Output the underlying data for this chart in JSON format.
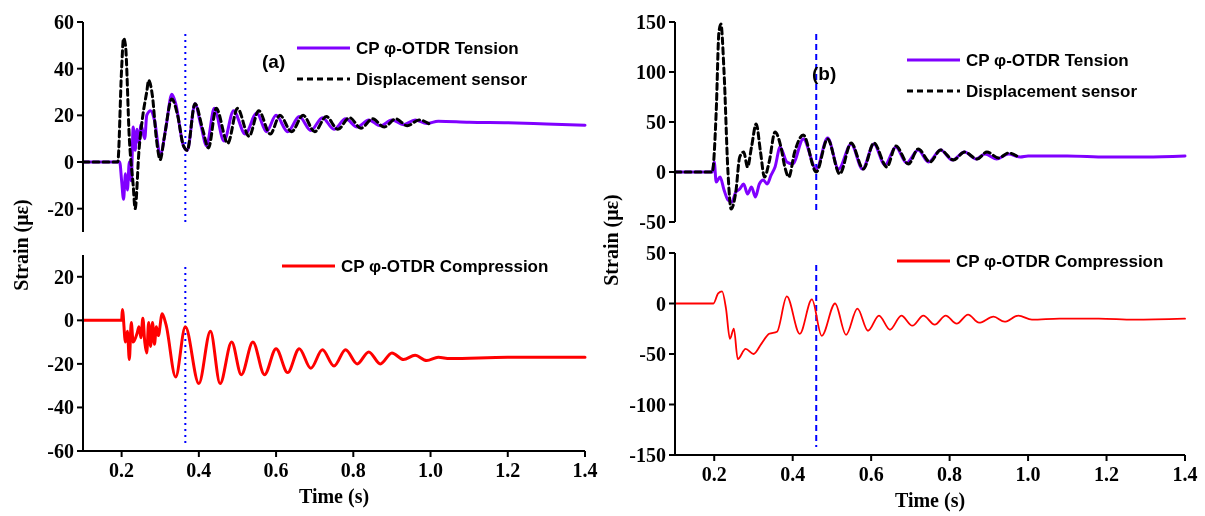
{
  "chart_data": [
    {
      "type": "line",
      "ylabel": "Strain (με)",
      "annotations": [
        "(a)"
      ],
      "xlim": [
        0.1,
        1.4
      ],
      "ylim": [
        -30,
        60
      ],
      "yticks": [
        -20,
        0,
        20,
        40,
        60
      ],
      "tick_labels": "y",
      "legend": "top right",
      "grid": false,
      "ref_lines": [
        {
          "axis": "x",
          "value": 0.365,
          "color": "#0000ff",
          "line_style": "dotted"
        }
      ],
      "series": [
        {
          "name": "CP φ-OTDR  Tension",
          "color": "#8000ff",
          "line_style": "solid",
          "x": [
            0.1,
            0.195,
            0.2,
            0.205,
            0.21,
            0.215,
            0.22,
            0.225,
            0.23,
            0.235,
            0.24,
            0.245,
            0.25,
            0.26,
            0.265,
            0.275,
            0.285,
            0.3,
            0.315,
            0.33,
            0.34,
            0.36,
            0.37,
            0.39,
            0.405,
            0.42,
            0.44,
            0.465,
            0.49,
            0.52,
            0.55,
            0.575,
            0.6,
            0.63,
            0.66,
            0.69,
            0.72,
            0.75,
            0.78,
            0.81,
            0.84,
            0.87,
            0.9,
            0.93,
            0.96,
            0.99,
            1.02,
            1.1,
            1.2,
            1.3,
            1.4
          ],
          "values": [
            0,
            0,
            -8,
            -16,
            -5,
            -12,
            0,
            -8,
            15,
            5,
            14,
            8,
            16,
            10,
            20,
            22,
            18,
            3,
            15,
            29,
            25,
            7,
            5,
            25,
            16,
            7,
            23,
            9,
            22,
            12,
            21,
            13,
            20,
            13,
            19.5,
            13.5,
            19,
            14,
            18.5,
            15,
            18,
            15.5,
            18,
            16,
            18,
            16.5,
            17.5,
            17,
            16.8,
            16.3,
            15.8
          ]
        },
        {
          "name": "Displacement sensor",
          "color": "#000000",
          "line_style": "dashed",
          "x": [
            0.1,
            0.19,
            0.2,
            0.205,
            0.21,
            0.22,
            0.23,
            0.235,
            0.245,
            0.255,
            0.265,
            0.27,
            0.28,
            0.29,
            0.3,
            0.31,
            0.33,
            0.345,
            0.36,
            0.37,
            0.39,
            0.41,
            0.425,
            0.445,
            0.475,
            0.5,
            0.53,
            0.555,
            0.585,
            0.61,
            0.64,
            0.67,
            0.7,
            0.73,
            0.76,
            0.79,
            0.82,
            0.85,
            0.88,
            0.91,
            0.94,
            0.97,
            1.0
          ],
          "values": [
            0,
            0,
            40,
            53,
            50,
            10,
            -10,
            -20,
            5,
            20,
            30,
            35,
            28,
            10,
            1,
            10,
            27,
            20,
            7,
            5,
            25,
            14,
            6,
            23,
            8,
            23,
            11,
            22,
            12,
            20,
            13,
            20,
            13,
            19.5,
            14,
            19,
            14.5,
            18.5,
            15,
            18.5,
            15.5,
            18,
            16
          ]
        }
      ]
    },
    {
      "type": "line",
      "xlabel": "Time (s)",
      "xlim": [
        0.1,
        1.4
      ],
      "xticks": [
        {
          "value": 0.2,
          "label": "0.2"
        },
        {
          "value": 0.4,
          "label": "0.4"
        },
        {
          "value": 0.6,
          "label": "0.6"
        },
        {
          "value": 0.8,
          "label": "0.8"
        },
        {
          "value": 1.0,
          "label": "1.0"
        },
        {
          "value": 1.2,
          "label": "1.2"
        },
        {
          "value": 1.4,
          "label": "1.4"
        }
      ],
      "ylim": [
        -60,
        30
      ],
      "yticks": [
        -60,
        -40,
        -20,
        0,
        20
      ],
      "legend": "top right",
      "grid": false,
      "ref_lines": [
        {
          "axis": "x",
          "value": 0.365,
          "color": "#0000ff",
          "line_style": "dotted"
        }
      ],
      "series": [
        {
          "name": "CP φ-OTDR Compression",
          "color": "#ff0000",
          "line_style": "solid",
          "x": [
            0.1,
            0.2,
            0.202,
            0.21,
            0.215,
            0.22,
            0.225,
            0.23,
            0.24,
            0.245,
            0.25,
            0.255,
            0.26,
            0.265,
            0.27,
            0.275,
            0.28,
            0.285,
            0.29,
            0.295,
            0.305,
            0.315,
            0.34,
            0.365,
            0.4,
            0.43,
            0.455,
            0.485,
            0.51,
            0.54,
            0.57,
            0.6,
            0.63,
            0.66,
            0.69,
            0.72,
            0.75,
            0.78,
            0.81,
            0.84,
            0.87,
            0.9,
            0.93,
            0.96,
            0.99,
            1.02,
            1.05,
            1.2,
            1.4
          ],
          "values": [
            0,
            0,
            5,
            -10,
            -5,
            -18,
            -1,
            -10,
            -6,
            -3,
            -8,
            1,
            -10,
            -15,
            -1,
            -12,
            -1,
            -11,
            -3,
            -7,
            3,
            -2,
            -26,
            -3,
            -29,
            -5,
            -29,
            -10,
            -25,
            -10,
            -25,
            -13,
            -24,
            -13,
            -22,
            -13.5,
            -21,
            -13.5,
            -20,
            -14.5,
            -20,
            -15,
            -18,
            -16,
            -18.5,
            -17,
            -17.5,
            -17,
            -17
          ]
        }
      ]
    },
    {
      "type": "line",
      "ylabel": "Strain (με)",
      "annotations": [
        "(b)"
      ],
      "xlim": [
        0.1,
        1.4
      ],
      "ylim": [
        -50,
        150
      ],
      "yticks": [
        -50,
        0,
        50,
        100,
        150
      ],
      "tick_labels": "y",
      "legend": "top right",
      "grid": false,
      "ref_lines": [
        {
          "axis": "x",
          "value": 0.46,
          "color": "#0000ff",
          "line_style": "dashed"
        }
      ],
      "series": [
        {
          "name": "CP φ-OTDR  Tension",
          "color": "#8000ff",
          "line_style": "solid",
          "x": [
            0.1,
            0.195,
            0.2,
            0.205,
            0.215,
            0.225,
            0.235,
            0.245,
            0.255,
            0.265,
            0.275,
            0.285,
            0.295,
            0.305,
            0.315,
            0.325,
            0.335,
            0.345,
            0.355,
            0.368,
            0.385,
            0.4,
            0.427,
            0.46,
            0.489,
            0.517,
            0.549,
            0.578,
            0.607,
            0.635,
            0.663,
            0.69,
            0.72,
            0.746,
            0.777,
            0.807,
            0.838,
            0.868,
            0.89,
            0.92,
            0.95,
            0.98,
            1.0,
            1.1,
            1.2,
            1.3,
            1.4
          ],
          "values": [
            0,
            0,
            10,
            -10,
            -5,
            -18,
            -28,
            -30,
            -20,
            -17,
            -12,
            -22,
            -15,
            -25,
            -12,
            -8,
            -12,
            -3,
            5,
            25,
            10,
            8,
            33,
            3,
            34,
            3,
            28,
            3,
            28,
            7,
            25,
            9,
            22,
            10,
            22,
            12,
            20,
            13,
            18,
            13,
            18,
            15,
            16,
            16,
            15,
            15,
            16
          ]
        },
        {
          "name": "Displacement sensor",
          "color": "#000000",
          "line_style": "dashed",
          "x": [
            0.1,
            0.195,
            0.205,
            0.212,
            0.217,
            0.225,
            0.235,
            0.243,
            0.255,
            0.265,
            0.275,
            0.285,
            0.295,
            0.307,
            0.318,
            0.328,
            0.34,
            0.355,
            0.37,
            0.38,
            0.39,
            0.405,
            0.427,
            0.46,
            0.489,
            0.52,
            0.549,
            0.58,
            0.607,
            0.64,
            0.663,
            0.695,
            0.72,
            0.75,
            0.777,
            0.81,
            0.838,
            0.87,
            0.895,
            0.925,
            0.95,
            0.975
          ],
          "values": [
            0,
            0,
            60,
            140,
            148,
            100,
            0,
            -37,
            -20,
            15,
            20,
            5,
            25,
            48,
            20,
            -5,
            10,
            40,
            25,
            5,
            -5,
            20,
            37,
            0,
            33,
            -2,
            29,
            3,
            29,
            5,
            26,
            8,
            23,
            10,
            22,
            12,
            20,
            13,
            20,
            14,
            19,
            15
          ]
        }
      ]
    },
    {
      "type": "line",
      "xlabel": "Time (s)",
      "xlim": [
        0.1,
        1.4
      ],
      "xticks": [
        {
          "value": 0.2,
          "label": "0.2"
        },
        {
          "value": 0.4,
          "label": "0.4"
        },
        {
          "value": 0.6,
          "label": "0.6"
        },
        {
          "value": 0.8,
          "label": "0.8"
        },
        {
          "value": 1.0,
          "label": "1.0"
        },
        {
          "value": 1.2,
          "label": "1.2"
        },
        {
          "value": 1.4,
          "label": "1.4"
        }
      ],
      "ylim": [
        -150,
        50
      ],
      "yticks": [
        -150,
        -100,
        -50,
        0,
        50
      ],
      "legend": "top right",
      "grid": false,
      "ref_lines": [
        {
          "axis": "x",
          "value": 0.46,
          "color": "#0000ff",
          "line_style": "dashed"
        }
      ],
      "series": [
        {
          "name": "CP φ-OTDR  Compression",
          "color": "#ff0000",
          "line_style": "solid",
          "x": [
            0.1,
            0.198,
            0.21,
            0.22,
            0.23,
            0.24,
            0.25,
            0.26,
            0.28,
            0.3,
            0.32,
            0.34,
            0.36,
            0.385,
            0.418,
            0.449,
            0.474,
            0.508,
            0.536,
            0.565,
            0.592,
            0.62,
            0.648,
            0.677,
            0.705,
            0.733,
            0.762,
            0.79,
            0.818,
            0.847,
            0.875,
            0.912,
            0.94,
            0.975,
            1.01,
            1.08,
            1.18,
            1.27,
            1.4
          ],
          "values": [
            0,
            0,
            10,
            12,
            -5,
            -35,
            -25,
            -55,
            -45,
            -50,
            -40,
            -30,
            -28,
            7,
            -30,
            4,
            -32,
            0,
            -31,
            -5,
            -27,
            -12,
            -26,
            -12,
            -22,
            -12,
            -21,
            -12,
            -20,
            -11,
            -19,
            -13,
            -18,
            -12,
            -16,
            -15,
            -15,
            -16,
            -15
          ]
        }
      ]
    }
  ]
}
